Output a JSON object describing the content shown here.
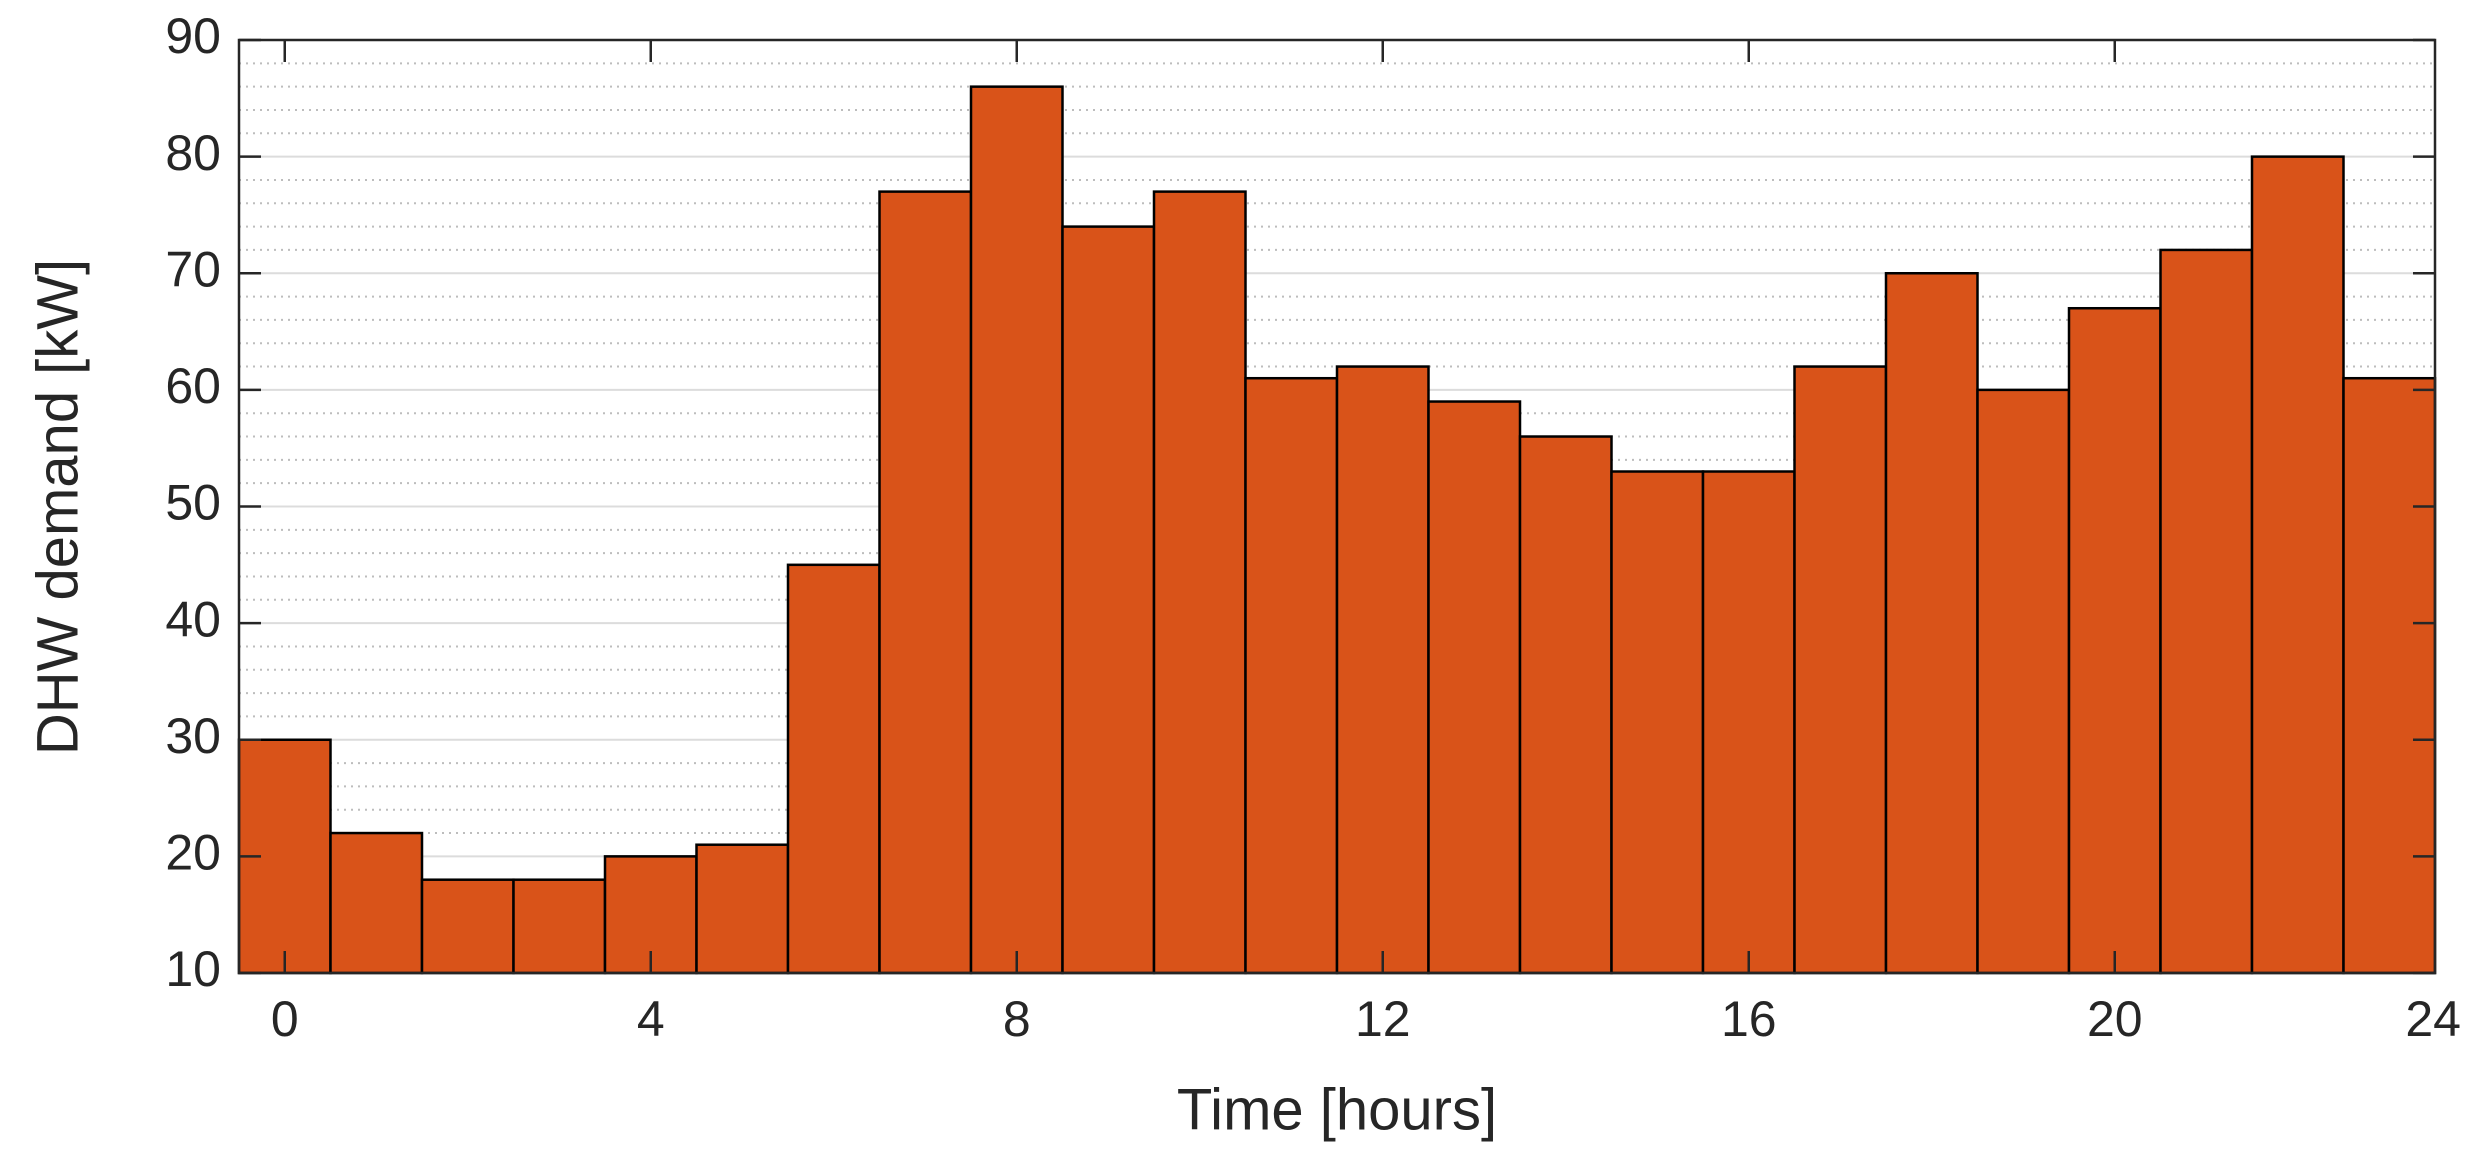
{
  "chart_data": {
    "type": "bar",
    "x": [
      0,
      1,
      2,
      3,
      4,
      5,
      6,
      7,
      8,
      9,
      10,
      11,
      12,
      13,
      14,
      15,
      16,
      17,
      18,
      19,
      20,
      21,
      22,
      23
    ],
    "values": [
      30,
      22,
      18,
      18,
      20,
      21,
      45,
      77,
      86,
      74,
      77,
      61,
      62,
      59,
      56,
      53,
      53,
      62,
      70,
      60,
      67,
      72,
      80,
      61
    ],
    "color": "#d95319",
    "edge_color": "#000000",
    "xlabel": "Time [hours]",
    "ylabel": "DHW demand [kW]",
    "xlim": [
      -0.5,
      23.5
    ],
    "xticks": [
      0,
      4,
      8,
      12,
      16,
      20,
      24
    ],
    "ylim": [
      10,
      90
    ],
    "yticks": [
      10,
      20,
      30,
      40,
      50,
      60,
      70,
      80,
      90
    ],
    "grid": true,
    "minor_grid": true
  }
}
